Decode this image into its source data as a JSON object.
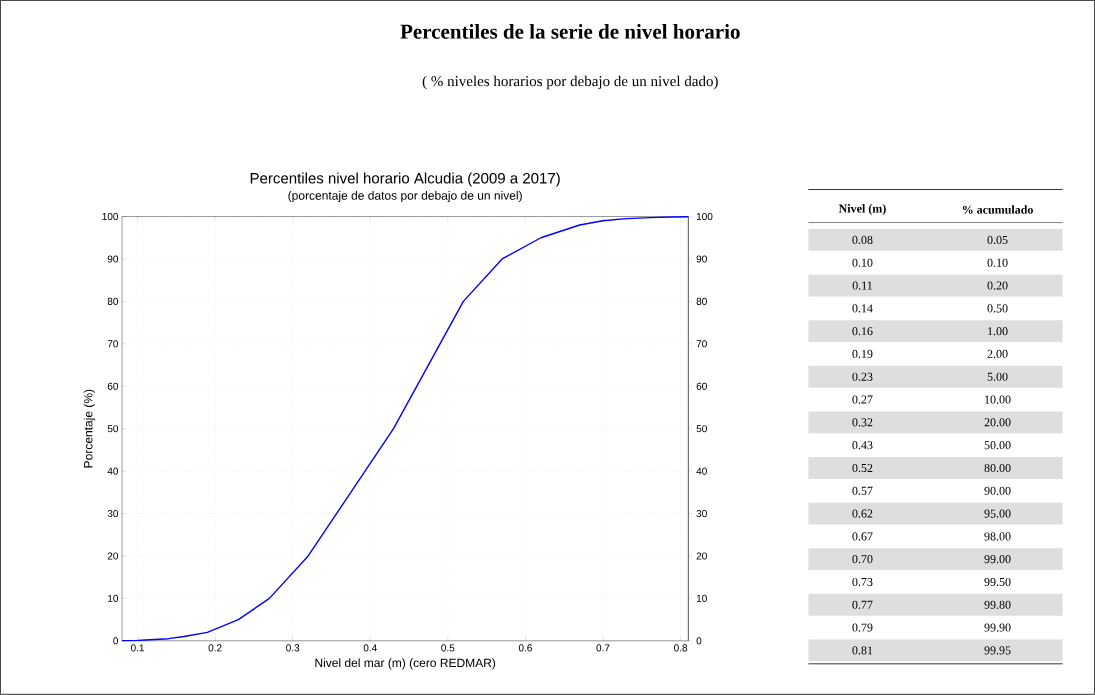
{
  "chart_data": [
    {
      "type": "line",
      "title": "Percentiles de la serie de nivel horario",
      "subtitle": "( % niveles horarios por debajo de un nivel dado)",
      "annotations": [
        "Percentiles nivel horario Alcudia (2009 a 2017)",
        "(porcentaje de datos por debajo de un nivel)"
      ],
      "xlabel": "Nivel del mar (m) (cero REDMAR)",
      "ylabel": "Porcentaje (%)",
      "x": [
        0.08,
        0.1,
        0.11,
        0.14,
        0.16,
        0.19,
        0.23,
        0.27,
        0.32,
        0.43,
        0.52,
        0.57,
        0.62,
        0.67,
        0.7,
        0.73,
        0.77,
        0.79,
        0.81
      ],
      "series": [
        {
          "color": "#0000ff",
          "values": [
            0.05,
            0.1,
            0.2,
            0.5,
            1.0,
            2.0,
            5.0,
            10.0,
            20.0,
            50.0,
            80.0,
            90.0,
            95.0,
            98.0,
            99.0,
            99.5,
            99.8,
            99.9,
            99.95
          ]
        }
      ],
      "xlim": [
        0.08,
        0.81
      ],
      "xticks": [
        0.1,
        0.2,
        0.3,
        0.4,
        0.5,
        0.6,
        0.7,
        0.8
      ],
      "ylim": [
        0,
        100
      ],
      "yticks": [
        0,
        10,
        20,
        30,
        40,
        50,
        60,
        70,
        80,
        90,
        100
      ],
      "y2lim": [
        0,
        100
      ],
      "y2ticks": [
        0,
        10,
        20,
        30,
        40,
        50,
        60,
        70,
        80,
        90,
        100
      ],
      "grid": true,
      "marker": "none",
      "line_style": "solid"
    },
    {
      "type": "other",
      "annotations": [
        "Nivel (m)",
        "% acumulado",
        "0.08",
        "0.05",
        "0.10",
        "0.10",
        "0.11",
        "0.20",
        "0.14",
        "0.50",
        "0.16",
        "1.00",
        "0.19",
        "2.00",
        "0.23",
        "5.00",
        "0.27",
        "10.00",
        "0.32",
        "20.00",
        "0.43",
        "50.00",
        "0.52",
        "80.00",
        "0.57",
        "90.00",
        "0.62",
        "95.00",
        "0.67",
        "98.00",
        "0.70",
        "99.00",
        "0.73",
        "99.50",
        "0.77",
        "99.80",
        "0.79",
        "99.90",
        "0.81",
        "99.95"
      ]
    }
  ]
}
